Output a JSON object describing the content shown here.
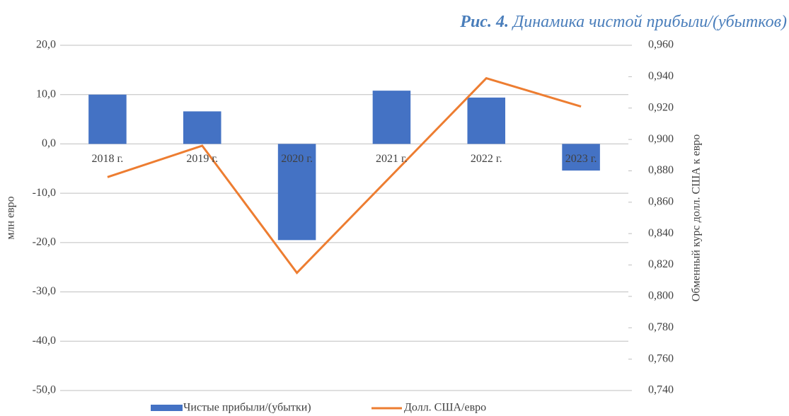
{
  "chart_data": {
    "type": "bar_line",
    "figure_label": "Рис. 4.",
    "title": "Динамика чистой прибыли/(убытков)",
    "y_label": "млн евро",
    "y2_label": "Обменный курс долл. США к евро",
    "categories": [
      "2018 г.",
      "2019 г.",
      "2020 г.",
      "2021 г.",
      "2022 г.",
      "2023 г."
    ],
    "series": [
      {
        "name": "Чистые прибыли/(убытки)",
        "type": "bar",
        "color": "#4472c4",
        "values": [
          10.0,
          6.6,
          -19.5,
          10.8,
          9.4,
          -5.4
        ]
      },
      {
        "name": "Долл. США/евро",
        "type": "line",
        "axis": "y2",
        "color": "#ed7d31",
        "values": [
          0.876,
          0.896,
          0.815,
          0.877,
          0.939,
          0.921
        ]
      }
    ],
    "ylim": [
      -50,
      20
    ],
    "yticks": [
      {
        "value": 20,
        "label": "20,0"
      },
      {
        "value": 10,
        "label": "10,0"
      },
      {
        "value": 0,
        "label": "0,0"
      },
      {
        "value": -10,
        "label": "-10,0"
      },
      {
        "value": -20,
        "label": "-20,0"
      },
      {
        "value": -30,
        "label": "-30,0"
      },
      {
        "value": -40,
        "label": "-40,0"
      },
      {
        "value": -50,
        "label": "-50,0"
      }
    ],
    "y2lim": [
      0.74,
      0.96
    ],
    "y2ticks": [
      {
        "value": 0.96,
        "label": "0,960"
      },
      {
        "value": 0.94,
        "label": "0,940"
      },
      {
        "value": 0.92,
        "label": "0,920"
      },
      {
        "value": 0.9,
        "label": "0,900"
      },
      {
        "value": 0.88,
        "label": "0,880"
      },
      {
        "value": 0.86,
        "label": "0,860"
      },
      {
        "value": 0.84,
        "label": "0,840"
      },
      {
        "value": 0.82,
        "label": "0,820"
      },
      {
        "value": 0.8,
        "label": "0,800"
      },
      {
        "value": 0.78,
        "label": "0,780"
      },
      {
        "value": 0.76,
        "label": "0,760"
      },
      {
        "value": 0.74,
        "label": "0,740"
      }
    ],
    "grid": true,
    "legend": "bottom"
  }
}
